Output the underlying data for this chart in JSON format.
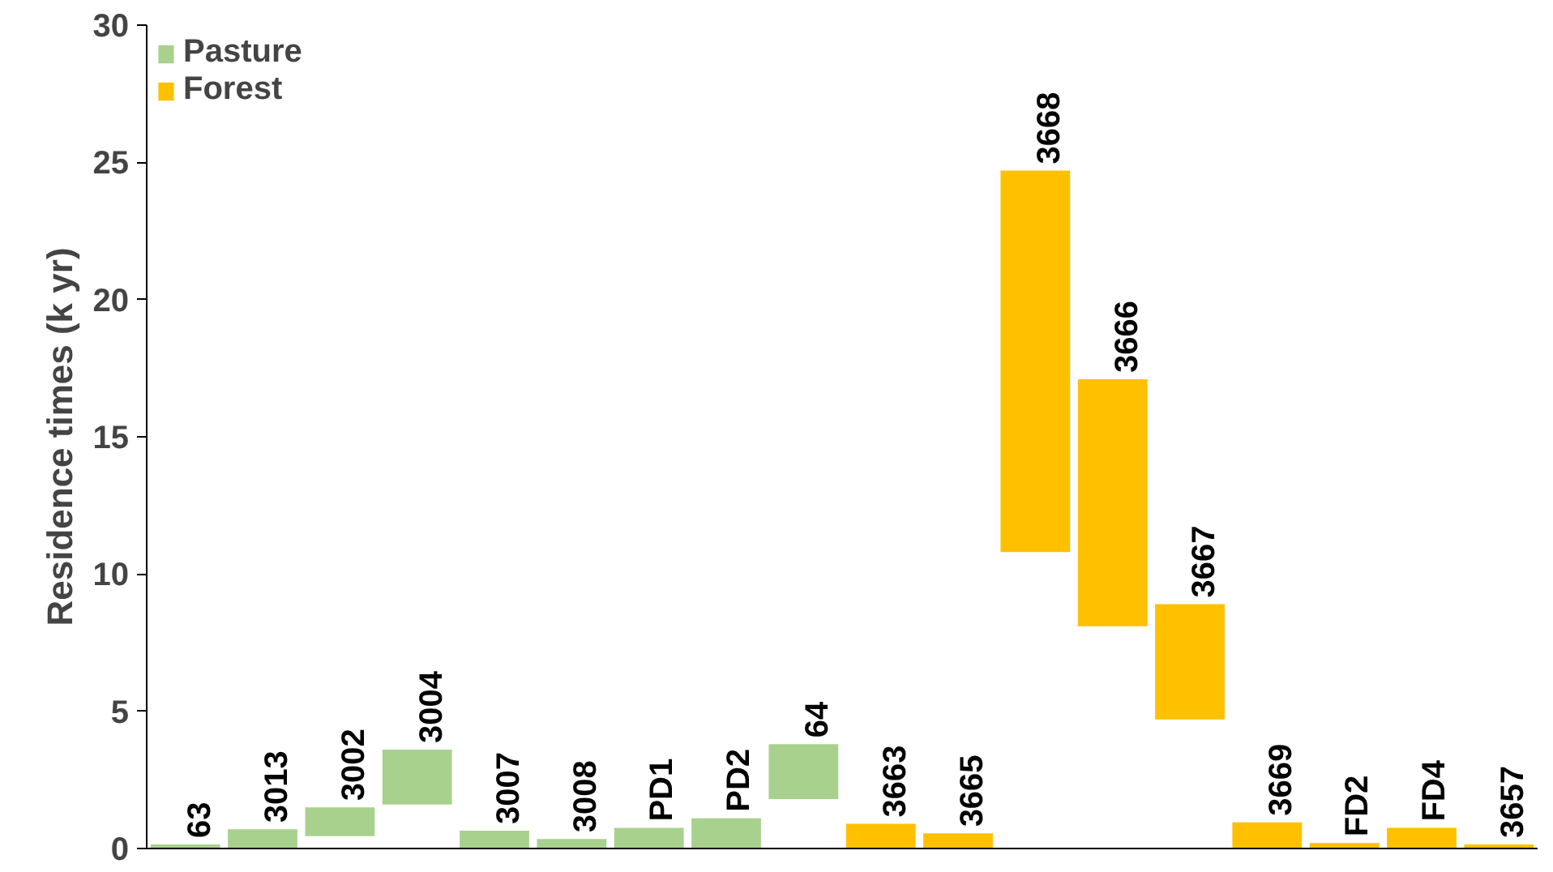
{
  "chart_data": {
    "type": "bar",
    "ylabel": "Residence times (k yr)",
    "categories": [
      "63",
      "3013",
      "3002",
      "3004",
      "3007",
      "3008",
      "PD1",
      "PD2",
      "64",
      "3663",
      "3665",
      "3668",
      "3666",
      "3667",
      "3669",
      "FD2",
      "FD4",
      "3657"
    ],
    "series": [
      {
        "name": "Pasture",
        "color": "#a9d18e",
        "values": [
          0.15,
          0.7,
          1.05,
          2.0,
          0.65,
          0.35,
          0.75,
          1.1,
          2.0,
          null,
          null,
          null,
          null,
          null,
          null,
          null,
          null,
          null
        ],
        "base": [
          0,
          0,
          0.45,
          1.6,
          0,
          0,
          0,
          0,
          1.8,
          null,
          null,
          null,
          null,
          null,
          null,
          null,
          null,
          null
        ]
      },
      {
        "name": "Forest",
        "color": "#ffc000",
        "values": [
          null,
          null,
          null,
          null,
          null,
          null,
          null,
          null,
          null,
          0.9,
          0.55,
          13.9,
          9.0,
          4.2,
          0.95,
          0.2,
          0.75,
          0.15
        ],
        "base": [
          null,
          null,
          null,
          null,
          null,
          null,
          null,
          null,
          null,
          0,
          0,
          10.8,
          8.1,
          4.7,
          0,
          0,
          0,
          0
        ]
      }
    ],
    "ylim": [
      0,
      30
    ],
    "yticks": [
      0,
      5,
      10,
      15,
      20,
      25,
      30
    ],
    "grid": false,
    "legend": "top left",
    "tick_labels": "y"
  }
}
